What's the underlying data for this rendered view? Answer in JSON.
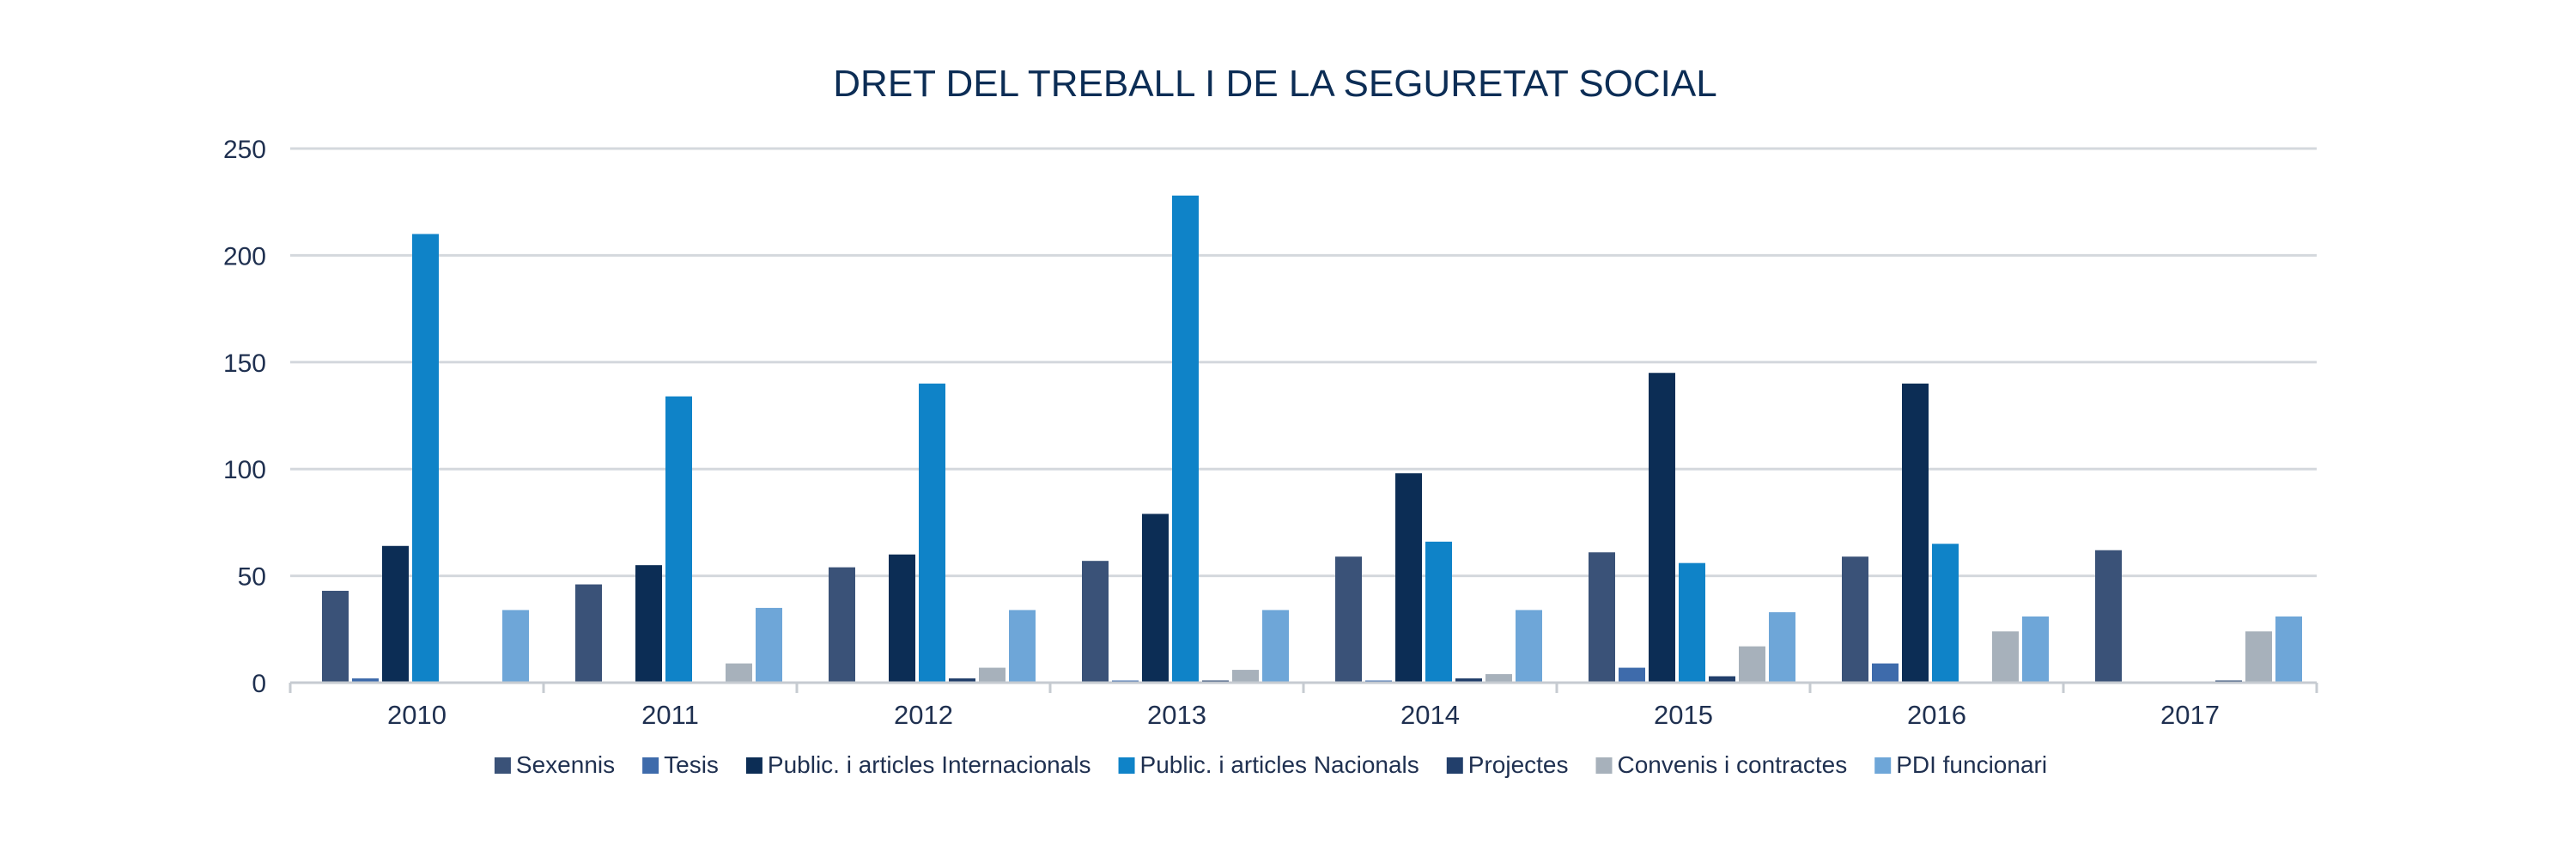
{
  "chart_data": {
    "type": "bar",
    "title": "DRET DEL TREBALL I DE LA SEGURETAT SOCIAL",
    "xlabel": "",
    "ylabel": "",
    "ylim": [
      0,
      250
    ],
    "yticks": [
      0,
      50,
      100,
      150,
      200,
      250
    ],
    "grid": true,
    "legend_position": "bottom",
    "categories": [
      "2010",
      "2011",
      "2012",
      "2013",
      "2014",
      "2015",
      "2016",
      "2017"
    ],
    "series": [
      {
        "name": "Sexennis",
        "color": "#3a5278",
        "values": [
          43,
          46,
          54,
          57,
          59,
          61,
          59,
          62
        ]
      },
      {
        "name": "Tesis",
        "color": "#3e6bab",
        "values": [
          2,
          0,
          0,
          1,
          1,
          7,
          9,
          0
        ]
      },
      {
        "name": "Public. i articles Internacionals",
        "color": "#0c2d55",
        "values": [
          64,
          55,
          60,
          79,
          98,
          145,
          140,
          0
        ]
      },
      {
        "name": "Public. i articles Nacionals",
        "color": "#0f83c8",
        "values": [
          210,
          134,
          140,
          228,
          66,
          56,
          65,
          0
        ]
      },
      {
        "name": "Projectes",
        "color": "#223f6b",
        "values": [
          0,
          0,
          2,
          1,
          2,
          3,
          0,
          1
        ]
      },
      {
        "name": "Convenis i contractes",
        "color": "#a7b1bb",
        "values": [
          0,
          9,
          7,
          6,
          4,
          17,
          24,
          24
        ]
      },
      {
        "name": "PDI funcionari",
        "color": "#6ea6d8",
        "values": [
          34,
          35,
          34,
          34,
          34,
          33,
          31,
          31
        ]
      }
    ]
  }
}
